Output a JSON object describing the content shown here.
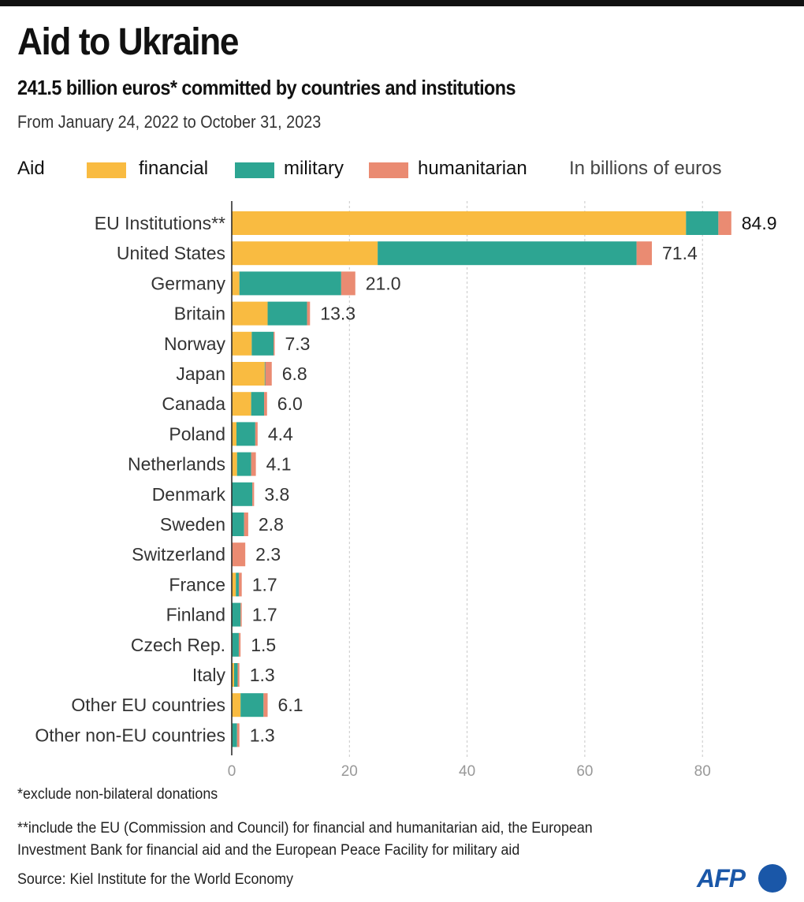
{
  "header": {
    "title": "Aid to Ukraine",
    "subtitle": "241.5 billion euros* committed by countries and institutions",
    "date_range": "From January 24, 2022 to October 31, 2023"
  },
  "legend": {
    "label": "Aid",
    "items": [
      {
        "name": "financial",
        "color": "#f9bb41"
      },
      {
        "name": "military",
        "color": "#2da592"
      },
      {
        "name": "humanitarian",
        "color": "#ea8b72"
      }
    ],
    "unit": "In billions of euros"
  },
  "chart_data": {
    "type": "bar",
    "orientation": "horizontal",
    "stacked": true,
    "title": "Aid to Ukraine",
    "subtitle": "241.5 billion euros* committed by countries and institutions",
    "xlabel": "",
    "ylabel": "",
    "unit": "In billions of euros",
    "xlim": [
      0,
      90
    ],
    "xticks": [
      0,
      20,
      40,
      60,
      80
    ],
    "xtick_labels": [
      "0",
      "20",
      "40",
      "60",
      "80"
    ],
    "grid": "vertical dashed",
    "legend_position": "top",
    "categories": [
      "EU Institutions**",
      "United States",
      "Germany",
      "Britain",
      "Norway",
      "Japan",
      "Canada",
      "Poland",
      "Netherlands",
      "Denmark",
      "Sweden",
      "Switzerland",
      "France",
      "Finland",
      "Czech Rep.",
      "Italy",
      "Other EU countries",
      "Other non-EU countries"
    ],
    "series": [
      {
        "name": "financial",
        "color": "#f9bb41",
        "values": [
          77.2,
          24.8,
          1.3,
          6.1,
          3.4,
          5.6,
          3.3,
          0.8,
          0.9,
          0.0,
          0.0,
          0.0,
          0.7,
          0.0,
          0.1,
          0.4,
          1.5,
          0.1
        ]
      },
      {
        "name": "military",
        "color": "#2da592",
        "values": [
          5.5,
          44.0,
          17.3,
          6.7,
          3.7,
          0.1,
          2.2,
          3.2,
          2.4,
          3.5,
          2.1,
          0.1,
          0.5,
          1.5,
          1.1,
          0.6,
          3.9,
          0.8
        ]
      },
      {
        "name": "humanitarian",
        "color": "#ea8b72",
        "values": [
          2.2,
          2.6,
          2.4,
          0.5,
          0.2,
          1.1,
          0.5,
          0.4,
          0.8,
          0.3,
          0.7,
          2.2,
          0.5,
          0.2,
          0.3,
          0.3,
          0.7,
          0.4
        ]
      }
    ],
    "totals": [
      84.9,
      71.4,
      21.0,
      13.3,
      7.3,
      6.8,
      6.0,
      4.4,
      4.1,
      3.8,
      2.8,
      2.3,
      1.7,
      1.7,
      1.5,
      1.3,
      6.1,
      1.3
    ],
    "total_labels": [
      "84.9",
      "71.4",
      "21.0",
      "13.3",
      "7.3",
      "6.8",
      "6.0",
      "4.4",
      "4.1",
      "3.8",
      "2.8",
      "2.3",
      "1.7",
      "1.7",
      "1.5",
      "1.3",
      "6.1",
      "1.3"
    ]
  },
  "footer": {
    "note1": "*exclude non-bilateral donations",
    "note2_line1": "**include the EU (Commission and Council) for financial and humanitarian aid, the European",
    "note2_line2": "Investment Bank for financial aid and the European Peace Facility for military aid",
    "source": "Source: Kiel Institute for the World Economy",
    "logo": "AFP"
  }
}
